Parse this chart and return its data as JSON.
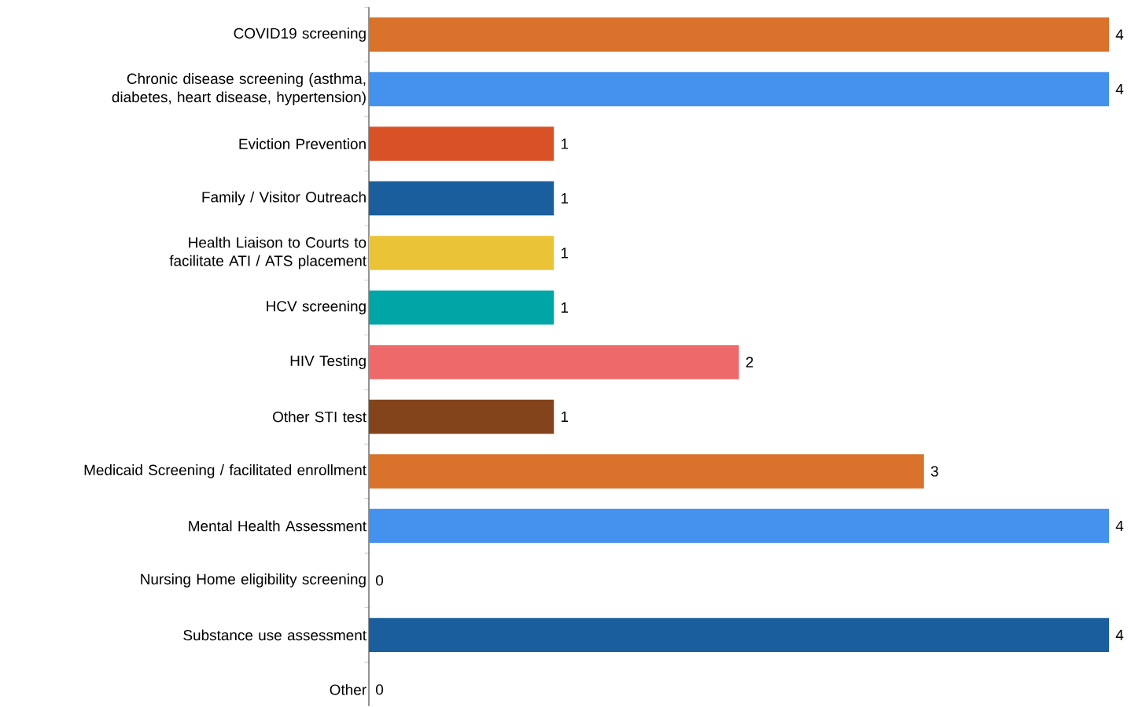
{
  "chart_data": {
    "type": "bar",
    "orientation": "horizontal",
    "data_labels": true,
    "categories": [
      "COVID19 screening",
      "Chronic disease screening (asthma, diabetes, heart disease, hypertension)",
      "Eviction Prevention",
      "Family / Visitor Outreach",
      "Health Liaison to Courts to facilitate ATI / ATS placement",
      "HCV screening",
      "HIV Testing",
      "Other STI test",
      "Medicaid Screening / facilitated enrollment",
      "Mental Health Assessment",
      "Nursing Home eligibility screening",
      "Substance use assessment",
      "Other"
    ],
    "values": [
      4,
      4,
      1,
      1,
      1,
      1,
      2,
      1,
      3,
      4,
      0,
      4,
      0
    ],
    "colors": [
      "#d9722b",
      "#4592ee",
      "#d95227",
      "#1a5e9d",
      "#eac436",
      "#00a6a6",
      "#ee6a6a",
      "#83441b",
      "#d9722b",
      "#4592ee",
      "#d95227",
      "#1a5e9d",
      "#eac436"
    ]
  }
}
